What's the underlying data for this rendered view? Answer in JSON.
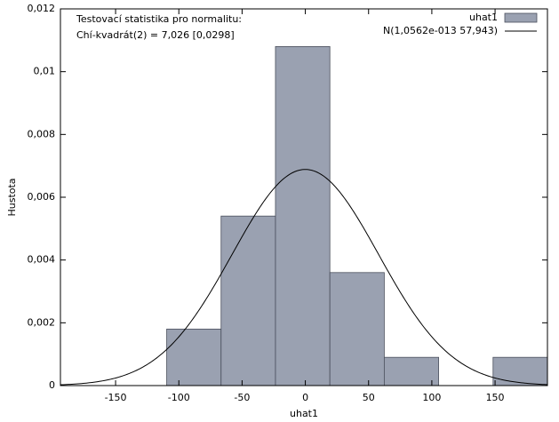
{
  "chart_data": {
    "type": "histogram",
    "xlabel": "uhat1",
    "ylabel": "Hustota",
    "annotations": [
      "Testovací statistika pro normalitu:",
      "Chí-kvadrát(2) = 7,026 [0,0298]"
    ],
    "bins": [
      -109.6,
      -66.6,
      -23.6,
      19.4,
      62.4,
      105.4,
      148.4,
      191.4
    ],
    "series": [
      {
        "name": "uhat1",
        "color": "#9aa1b1",
        "values": [
          0.0018,
          0.0054,
          0.0108,
          0.0036,
          0.0009,
          0,
          0.0009
        ]
      }
    ],
    "normal": {
      "name": "N(1,0562e-013 57,943)",
      "color": "#000000",
      "mean": 1.0562e-13,
      "sd": 57.943
    },
    "xlim": [
      -193.6,
      191.4
    ],
    "xticks": [
      -150,
      -100,
      -50,
      0,
      50,
      100,
      150
    ],
    "ylim": [
      0,
      0.012
    ],
    "yticks": [
      0,
      {
        "value": 0.002,
        "label": "0,002"
      },
      {
        "value": 0.004,
        "label": "0,004"
      },
      {
        "value": 0.006,
        "label": "0,006"
      },
      {
        "value": 0.008,
        "label": "0,008"
      },
      {
        "value": 0.01,
        "label": "0,01"
      },
      {
        "value": 0.012,
        "label": "0,012"
      }
    ],
    "legend": "top-right"
  }
}
